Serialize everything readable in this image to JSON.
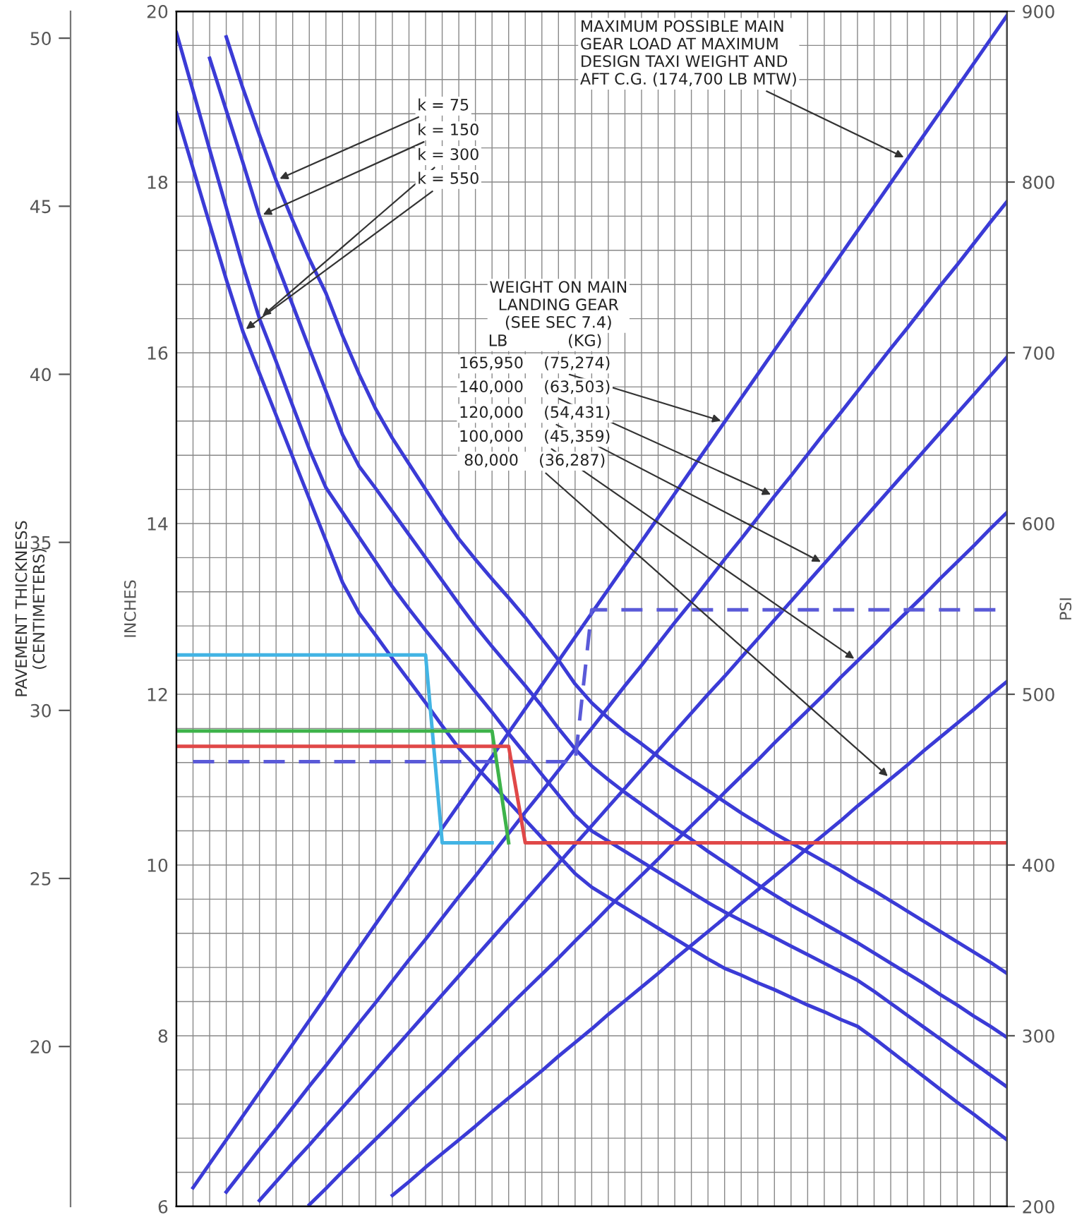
{
  "chart_data": {
    "type": "line",
    "ylabel": "INCHES",
    "y2label": "PSI",
    "y3label": "PAVEMENT THICKNESS\n(CENTIMETERS)",
    "categories": [
      null,
      null,
      null,
      null,
      null,
      null,
      null,
      null,
      null,
      null,
      null,
      null,
      null,
      null,
      null,
      null,
      null,
      null,
      null,
      null,
      null,
      null,
      null,
      null,
      null,
      null,
      null,
      null,
      null,
      null,
      null,
      null,
      null,
      null,
      null,
      null,
      null,
      null,
      null,
      null,
      null,
      null,
      null,
      null,
      null,
      null,
      null,
      null,
      null,
      null,
      null
    ],
    "ylim": [
      6,
      20
    ],
    "yticks": [
      6,
      {
        "value": 6.4,
        "label": null
      },
      {
        "value": 6.8,
        "label": null
      },
      {
        "value": 7.2,
        "label": null
      },
      {
        "value": 7.6,
        "label": null
      },
      8,
      {
        "value": 8.4,
        "label": null
      },
      {
        "value": 8.8,
        "label": null
      },
      {
        "value": 9.2,
        "label": null
      },
      {
        "value": 9.6,
        "label": null
      },
      10,
      {
        "value": 10.4,
        "label": null
      },
      {
        "value": 10.8,
        "label": null
      },
      {
        "value": 11.2,
        "label": null
      },
      {
        "value": 11.6,
        "label": null
      },
      12,
      {
        "value": 12.4,
        "label": null
      },
      {
        "value": 12.8,
        "label": null
      },
      {
        "value": 13.2,
        "label": null
      },
      {
        "value": 13.6,
        "label": null
      },
      14,
      {
        "value": 14.4,
        "label": null
      },
      {
        "value": 14.8,
        "label": null
      },
      {
        "value": 15.2,
        "label": null
      },
      {
        "value": 15.6,
        "label": null
      },
      16,
      {
        "value": 16.4,
        "label": null
      },
      {
        "value": 16.8,
        "label": null
      },
      {
        "value": 17.2,
        "label": null
      },
      {
        "value": 17.6,
        "label": null
      },
      18,
      {
        "value": 18.4,
        "label": null
      },
      {
        "value": 18.8,
        "label": null
      },
      {
        "value": 19.2,
        "label": null
      },
      {
        "value": 19.6,
        "label": null
      },
      20
    ],
    "y2lim": [
      200,
      900
    ],
    "y2ticks": [
      200,
      300,
      400,
      500,
      600,
      700,
      800,
      900
    ],
    "y3lim": [
      15.24,
      50.8
    ],
    "y3ticks": [
      20,
      25,
      30,
      35,
      40,
      45,
      50
    ],
    "grid": true,
    "annotations": [
      "WEIGHT ON MAIN\nLANDING GEAR\n(SEE SEC 7.4)",
      "LB            (KG)",
      "MAXIMUM POSSIBLE MAIN\nGEAR LOAD AT MAXIMUM\nDESIGN TAXI WEIGHT AND\nAFT C.G. (174,700 LB MTW)",
      "k = 75",
      "k = 150",
      "k = 300",
      "k = 550",
      "165,950    (75,274)",
      "140,000    (63,503)",
      "120,000    (54,431)",
      "100,000    (45,359)",
      " 80,000    (36,287)"
    ],
    "series": [
      {
        "color": "#3b3bd6",
        "values": [
          null,
          null,
          null,
          19.7,
          19.1,
          18.55,
          18.02,
          17.55,
          17.1,
          16.7,
          16.2,
          15.75,
          15.34,
          15.0,
          14.7,
          14.4,
          14.1,
          13.82,
          13.58,
          13.35,
          13.13,
          12.9,
          12.65,
          12.4,
          12.12,
          11.9,
          11.72,
          11.56,
          11.42,
          11.27,
          11.13,
          11.0,
          10.87,
          10.74,
          10.61,
          10.49,
          10.37,
          10.26,
          10.15,
          10.04,
          9.93,
          9.81,
          9.7,
          9.58,
          9.46,
          9.34,
          9.22,
          9.1,
          8.98,
          8.86,
          8.73
        ]
      },
      {
        "color": "#3b3bd6",
        "values": [
          null,
          null,
          19.45,
          18.84,
          18.23,
          17.6,
          17.07,
          16.56,
          16.05,
          15.55,
          15.04,
          14.67,
          14.41,
          14.14,
          13.87,
          13.6,
          13.33,
          13.06,
          12.8,
          12.56,
          12.33,
          12.1,
          11.86,
          11.6,
          11.36,
          11.16,
          11.0,
          10.85,
          10.71,
          10.57,
          10.43,
          10.3,
          10.16,
          10.03,
          9.9,
          9.77,
          9.65,
          9.53,
          9.42,
          9.31,
          9.2,
          9.09,
          8.97,
          8.85,
          8.73,
          8.61,
          8.48,
          8.36,
          8.23,
          8.11,
          7.98
        ]
      },
      {
        "color": "#3b3bd6",
        "values": [
          19.75,
          19.07,
          18.38,
          17.7,
          17.02,
          16.4,
          15.9,
          15.38,
          14.87,
          14.42,
          14.13,
          13.84,
          13.55,
          13.26,
          13.0,
          12.75,
          12.51,
          12.27,
          12.03,
          11.79,
          11.54,
          11.3,
          11.06,
          10.82,
          10.58,
          10.4,
          10.28,
          10.16,
          10.04,
          9.92,
          9.8,
          9.68,
          9.56,
          9.45,
          9.35,
          9.25,
          9.15,
          9.05,
          8.95,
          8.85,
          8.75,
          8.65,
          8.52,
          8.38,
          8.24,
          8.1,
          7.96,
          7.82,
          7.68,
          7.54,
          7.4
        ]
      },
      {
        "color": "#3b3bd6",
        "values": [
          18.81,
          18.16,
          17.51,
          16.86,
          16.25,
          15.76,
          15.27,
          14.78,
          14.29,
          13.8,
          13.31,
          12.95,
          12.69,
          12.42,
          12.16,
          11.9,
          11.63,
          11.37,
          11.16,
          10.95,
          10.74,
          10.53,
          10.32,
          10.11,
          9.9,
          9.74,
          9.62,
          9.5,
          9.38,
          9.26,
          9.14,
          9.02,
          8.9,
          8.79,
          8.71,
          8.62,
          8.54,
          8.45,
          8.36,
          8.28,
          8.19,
          8.11,
          7.97,
          7.82,
          7.67,
          7.52,
          7.37,
          7.22,
          7.08,
          6.93,
          6.78
        ]
      },
      {
        "color": "#3b3bd6",
        "values": [
          null,
          6.22,
          6.5,
          6.78,
          7.06,
          7.34,
          7.62,
          7.9,
          8.18,
          8.46,
          8.75,
          9.03,
          9.31,
          9.59,
          9.87,
          10.15,
          10.43,
          10.71,
          10.99,
          11.27,
          11.55,
          11.83,
          12.11,
          12.39,
          12.67,
          12.95,
          13.23,
          13.51,
          13.79,
          14.07,
          14.35,
          14.63,
          14.91,
          15.19,
          15.47,
          15.75,
          16.03,
          16.31,
          16.59,
          16.87,
          17.15,
          17.43,
          17.71,
          17.99,
          18.27,
          18.55,
          18.83,
          19.11,
          19.39,
          19.67,
          19.95
        ]
      },
      {
        "color": "#3b3bd6",
        "values": [
          null,
          null,
          null,
          6.17,
          6.42,
          6.67,
          6.91,
          7.16,
          7.41,
          7.65,
          7.9,
          8.15,
          8.39,
          8.64,
          8.89,
          9.13,
          9.38,
          9.63,
          9.87,
          10.12,
          10.37,
          10.62,
          10.86,
          11.11,
          11.36,
          11.6,
          11.85,
          12.1,
          12.34,
          12.59,
          12.84,
          13.08,
          13.33,
          13.58,
          13.82,
          14.07,
          14.32,
          14.56,
          14.81,
          15.06,
          15.3,
          15.55,
          15.8,
          16.05,
          16.29,
          16.54,
          16.79,
          17.03,
          17.28,
          17.53,
          17.77
        ]
      },
      {
        "color": "#3b3bd6",
        "values": [
          null,
          null,
          null,
          null,
          null,
          6.07,
          6.29,
          6.51,
          6.72,
          6.94,
          7.16,
          7.38,
          7.6,
          7.82,
          8.04,
          8.26,
          8.48,
          8.7,
          8.92,
          9.14,
          9.36,
          9.58,
          9.8,
          10.02,
          10.24,
          10.46,
          10.68,
          10.9,
          11.12,
          11.34,
          11.56,
          11.78,
          12.0,
          12.21,
          12.43,
          12.65,
          12.87,
          13.09,
          13.31,
          13.53,
          13.75,
          13.97,
          14.19,
          14.41,
          14.63,
          14.85,
          15.07,
          15.29,
          15.51,
          15.73,
          15.95
        ]
      },
      {
        "color": "#3b3bd6",
        "values": [
          null,
          null,
          null,
          null,
          null,
          null,
          null,
          null,
          6.02,
          6.21,
          6.41,
          6.6,
          6.79,
          6.98,
          7.18,
          7.37,
          7.56,
          7.76,
          7.95,
          8.14,
          8.34,
          8.53,
          8.72,
          8.91,
          9.11,
          9.3,
          9.5,
          9.69,
          9.88,
          10.07,
          10.27,
          10.46,
          10.65,
          10.85,
          11.04,
          11.23,
          11.43,
          11.62,
          11.81,
          12.0,
          12.2,
          12.39,
          12.58,
          12.78,
          12.97,
          13.16,
          13.36,
          13.55,
          13.74,
          13.94,
          14.13
        ]
      },
      {
        "color": "#3b3bd6",
        "values": [
          null,
          null,
          null,
          null,
          null,
          null,
          null,
          null,
          null,
          null,
          null,
          null,
          null,
          6.13,
          6.29,
          6.46,
          6.62,
          6.78,
          6.94,
          7.11,
          7.27,
          7.43,
          7.59,
          7.76,
          7.92,
          8.08,
          8.25,
          8.41,
          8.57,
          8.73,
          8.9,
          9.06,
          9.22,
          9.38,
          9.55,
          9.71,
          9.87,
          10.03,
          10.2,
          10.36,
          10.52,
          10.69,
          10.85,
          11.01,
          11.17,
          11.34,
          11.5,
          11.66,
          11.82,
          11.99,
          12.15
        ]
      },
      {
        "color": "#5a5ad8",
        "line_style": "dashed",
        "values": [
          null,
          11.21,
          11.21,
          11.21,
          11.21,
          11.21,
          11.21,
          11.21,
          11.21,
          11.21,
          11.21,
          11.21,
          11.21,
          11.21,
          11.21,
          11.21,
          11.21,
          11.21,
          11.21,
          11.21,
          11.21,
          11.21,
          11.21,
          11.21,
          11.21,
          12.99,
          12.99,
          12.99,
          12.99,
          12.99,
          12.99,
          12.99,
          12.99,
          12.99,
          12.99,
          12.99,
          12.99,
          12.99,
          12.99,
          12.99,
          12.99,
          12.99,
          12.99,
          12.99,
          12.99,
          12.99,
          12.99,
          12.99,
          12.99,
          12.99,
          12.99
        ]
      },
      {
        "color": "#42b4e4",
        "values": [
          12.46,
          12.46,
          12.46,
          12.46,
          12.46,
          12.46,
          12.46,
          12.46,
          12.46,
          12.46,
          12.46,
          12.46,
          12.46,
          12.46,
          12.46,
          12.46,
          10.26,
          10.26,
          10.26,
          10.26,
          null,
          null,
          null,
          null,
          null,
          null,
          null,
          null,
          null,
          null,
          null,
          null,
          null,
          null,
          null,
          null,
          null,
          null,
          null,
          null,
          null,
          null,
          null,
          null,
          null,
          null,
          null,
          null,
          null,
          null,
          null
        ]
      },
      {
        "color": "#3db34a",
        "values": [
          11.57,
          11.57,
          11.57,
          11.57,
          11.57,
          11.57,
          11.57,
          11.57,
          11.57,
          11.57,
          11.57,
          11.57,
          11.57,
          11.57,
          11.57,
          11.57,
          11.57,
          11.57,
          11.57,
          11.57,
          10.26,
          null,
          null,
          null,
          null,
          null,
          null,
          null,
          null,
          null,
          null,
          null,
          null,
          null,
          null,
          null,
          null,
          null,
          null,
          null,
          null,
          null,
          null,
          null,
          null,
          null,
          null,
          null,
          null,
          null,
          null
        ]
      },
      {
        "color": "#e04848",
        "values": [
          11.39,
          11.39,
          11.39,
          11.39,
          11.39,
          11.39,
          11.39,
          11.39,
          11.39,
          11.39,
          11.39,
          11.39,
          11.39,
          11.39,
          11.39,
          11.39,
          11.39,
          11.39,
          11.39,
          11.39,
          11.39,
          10.26,
          10.26,
          10.26,
          10.26,
          10.26,
          10.26,
          10.26,
          10.26,
          10.26,
          10.26,
          10.26,
          10.26,
          10.26,
          10.26,
          10.26,
          10.26,
          10.26,
          10.26,
          10.26,
          10.26,
          10.26,
          10.26,
          10.26,
          10.26,
          10.26,
          10.26,
          10.26,
          10.26,
          10.26,
          10.26
        ]
      }
    ]
  }
}
